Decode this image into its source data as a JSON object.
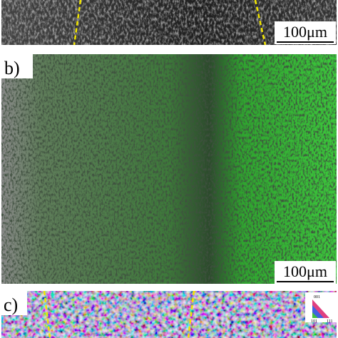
{
  "panels": [
    {
      "scale_bar": "100μm"
    },
    {
      "label": "b)",
      "scale_bar": "100μm"
    },
    {
      "label": "c)",
      "ipf_key": [
        "001",
        "101",
        "111"
      ]
    }
  ]
}
